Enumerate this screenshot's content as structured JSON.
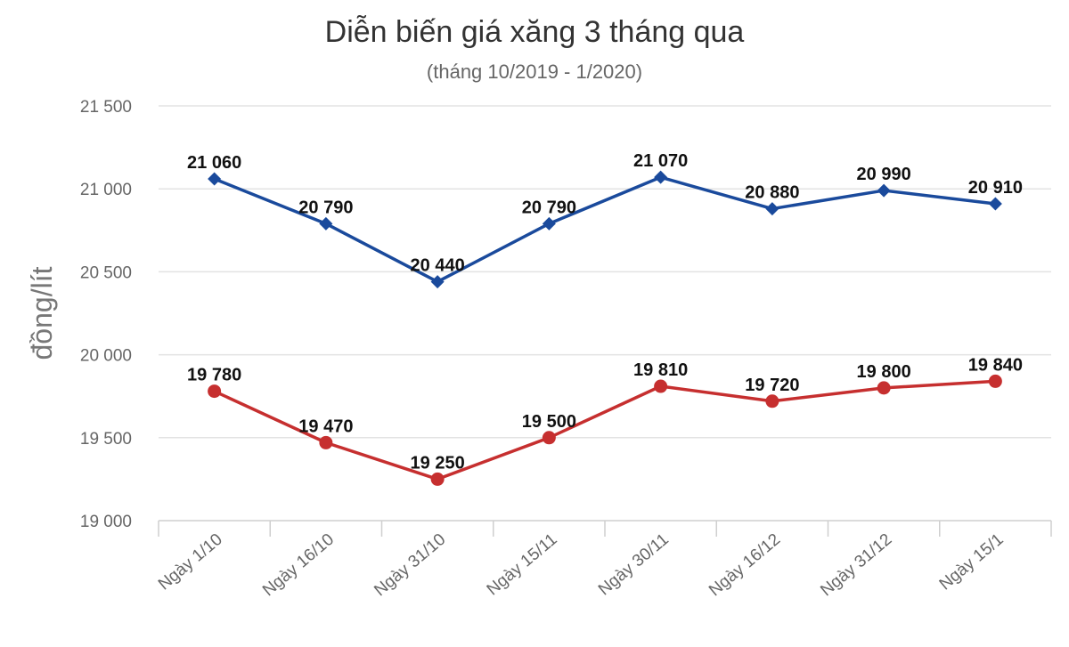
{
  "chart_data": {
    "type": "line",
    "title": "Diễn biến giá xăng 3 tháng qua",
    "subtitle": "(tháng 10/2019 - 1/2020)",
    "ylabel": "đồng/lít",
    "xlabel": "",
    "ylim": [
      19000,
      21500
    ],
    "yticks": [
      19000,
      19500,
      20000,
      20500,
      21000,
      21500
    ],
    "ytick_labels": [
      "19 000",
      "19 500",
      "20 000",
      "20 500",
      "21 000",
      "21 500"
    ],
    "grid": true,
    "categories": [
      "Ngày 1/10",
      "Ngày 16/10",
      "Ngày 31/10",
      "Ngày 15/11",
      "Ngày 30/11",
      "Ngày 16/12",
      "Ngày 31/12",
      "Ngày 15/1"
    ],
    "series": [
      {
        "color": "#1a4a9c",
        "marker": "diamond",
        "values": [
          21060,
          20790,
          20440,
          20790,
          21070,
          20880,
          20990,
          20910
        ],
        "labels": [
          "21 060",
          "20 790",
          "20 440",
          "20 790",
          "21 070",
          "20 880",
          "20 990",
          "20 910"
        ]
      },
      {
        "color": "#c62f2f",
        "marker": "circle",
        "values": [
          19780,
          19470,
          19250,
          19500,
          19810,
          19720,
          19800,
          19840
        ],
        "labels": [
          "19 780",
          "19 470",
          "19 250",
          "19 500",
          "19 810",
          "19 720",
          "19 800",
          "19 840"
        ]
      }
    ]
  }
}
